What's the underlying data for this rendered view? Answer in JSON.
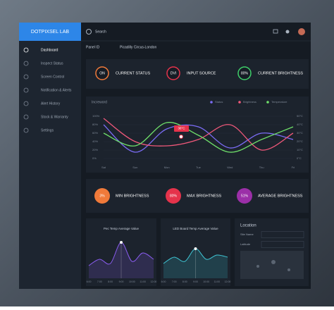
{
  "brand": "DOTPIXSEL LAB",
  "search": "Search",
  "nav": [
    "Dashboard",
    "Inspect Status",
    "Screen Control",
    "Notification & Alerts",
    "Alert History",
    "Stock & Warranty",
    "Settings"
  ],
  "panel": {
    "label": "Panel ID",
    "value": "Picadilly Circus-London"
  },
  "status_cards": [
    {
      "value": "ON",
      "label": "CURRENT STATUS",
      "color": "#f07a3a"
    },
    {
      "value": "DVI",
      "label": "INPUT SOURCE",
      "color": "#e5334b"
    },
    {
      "value": "80%",
      "label": "CURRENT BRIGHTNESS",
      "color": "#3fcf6a"
    }
  ],
  "main_chart": {
    "type": "line",
    "title": "Increword",
    "categories": [
      "Sat",
      "Sun",
      "Mon",
      "Tue",
      "Wed",
      "Thu",
      "Fri"
    ],
    "series": [
      {
        "name": "Status",
        "color": "#7b6cf6",
        "values": [
          80,
          15,
          70,
          75,
          25,
          60,
          45
        ]
      },
      {
        "name": "Brightness",
        "color": "#f0587a",
        "values": [
          95,
          40,
          30,
          45,
          80,
          20,
          60
        ]
      },
      {
        "name": "Temperature",
        "color": "#6fe06a",
        "values": [
          60,
          30,
          85,
          55,
          15,
          45,
          75
        ]
      }
    ],
    "ylim": [
      0,
      100
    ],
    "yticks": [
      {
        "value": 100,
        "label": "100%"
      },
      {
        "value": 80,
        "label": "80%"
      },
      {
        "value": 60,
        "label": "60%"
      },
      {
        "value": 40,
        "label": "40%"
      },
      {
        "value": 20,
        "label": "20%"
      },
      {
        "value": 0,
        "label": "0%"
      }
    ],
    "y2lim": [
      0,
      50
    ],
    "y2ticks": [
      {
        "value": 50,
        "label": "50°C"
      },
      {
        "value": 40,
        "label": "40°C"
      },
      {
        "value": 30,
        "label": "30°C"
      },
      {
        "value": 20,
        "label": "20°C"
      },
      {
        "value": 10,
        "label": "10°C"
      },
      {
        "value": 0,
        "label": "0°C"
      }
    ],
    "tooltip": "38°C"
  },
  "brightness_cards": [
    {
      "value": "3%",
      "label": "MIN BRIGHTNESS",
      "color": "#f07a3a"
    },
    {
      "value": "80%",
      "label": "MAX BRIGHTNESS",
      "color": "#e5334b"
    },
    {
      "value": "51%",
      "label": "AVERAGE BRIGHTNESS",
      "color": "#9b2fa8"
    }
  ],
  "small_charts": [
    {
      "type": "area",
      "title": "Pec Temp Average Value",
      "color": "#8a5cf0",
      "categories": [
        "6:00",
        "7:00",
        "8:00",
        "9:00",
        "10:00",
        "11:00",
        "12:00"
      ],
      "values": [
        30,
        45,
        35,
        85,
        40,
        60,
        45
      ],
      "ylim": [
        0,
        100
      ]
    },
    {
      "type": "area",
      "title": "LED Board Temp Average Value",
      "color": "#3fc7d6",
      "categories": [
        "6:00",
        "7:00",
        "8:00",
        "9:00",
        "10:00",
        "11:00",
        "12:00"
      ],
      "values": [
        35,
        50,
        40,
        70,
        45,
        55,
        50
      ],
      "ylim": [
        0,
        100
      ]
    }
  ],
  "location": {
    "title": "Location",
    "fields": [
      "Site Name",
      "Latitude"
    ]
  }
}
